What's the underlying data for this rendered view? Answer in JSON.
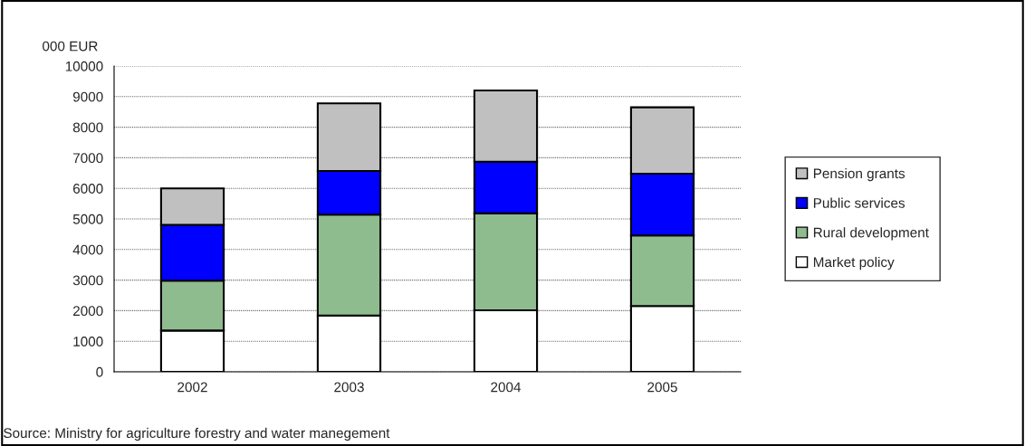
{
  "chart_data": {
    "type": "bar",
    "stacked": true,
    "ylabel": "000 EUR",
    "categories": [
      "2002",
      "2003",
      "2004",
      "2005"
    ],
    "series": [
      {
        "name": "Market policy",
        "color": "#ffffff",
        "values": [
          1350,
          1840,
          2010,
          2150
        ]
      },
      {
        "name": "Rural development",
        "color": "#8fbc8f",
        "values": [
          1630,
          3300,
          3170,
          2310
        ]
      },
      {
        "name": "Public services",
        "color": "#0000ff",
        "values": [
          1830,
          1430,
          1690,
          2020
        ]
      },
      {
        "name": "Pension grants",
        "color": "#c0c0c0",
        "values": [
          1190,
          2210,
          2330,
          2170
        ]
      }
    ],
    "ylim": [
      0,
      10000
    ],
    "yticks": [
      0,
      1000,
      2000,
      3000,
      4000,
      5000,
      6000,
      7000,
      8000,
      9000,
      10000
    ],
    "grid": "y",
    "legend": "right",
    "annotations": [
      "Source: Ministry for agriculture forestry and water manegement"
    ]
  }
}
